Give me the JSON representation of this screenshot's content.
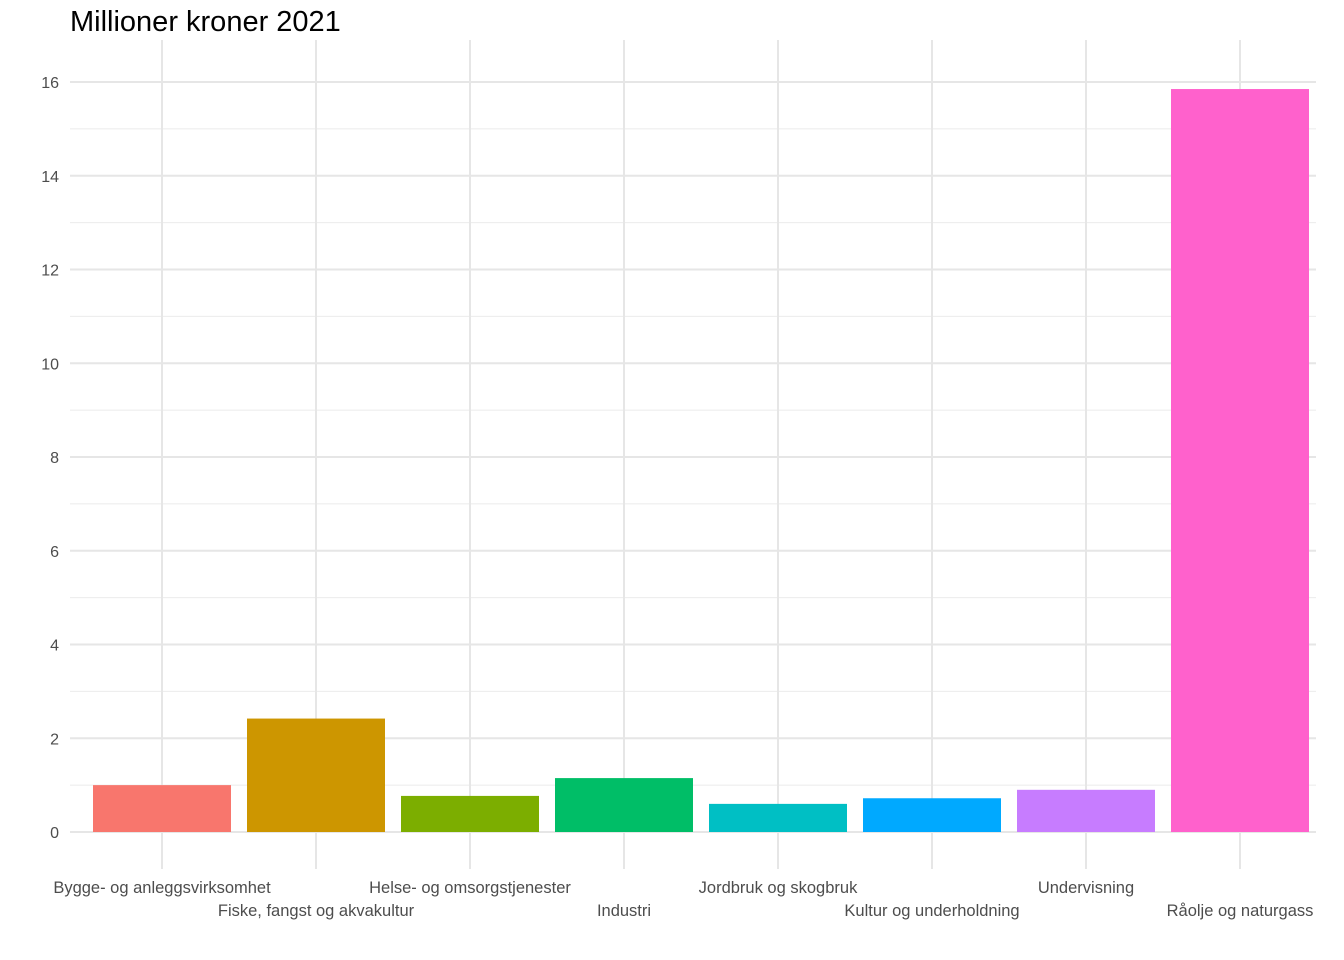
{
  "chart_data": {
    "type": "bar",
    "title": "Millioner kroner 2021",
    "xlabel": "",
    "ylabel": "",
    "ylim": [
      0,
      16.7
    ],
    "yticks": [
      0,
      2,
      4,
      6,
      8,
      10,
      12,
      14,
      16
    ],
    "grid": true,
    "legend": "none",
    "categories": [
      "Bygge- og anleggsvirksomhet",
      "Fiske, fangst og akvakultur",
      "Helse- og omsorgstjenester",
      "Industri",
      "Jordbruk og skogbruk",
      "Kultur og underholdning",
      "Undervisning",
      "Råolje og naturgass"
    ],
    "values": [
      1.0,
      2.42,
      0.77,
      1.15,
      0.6,
      0.72,
      0.9,
      15.85
    ],
    "colors": [
      "#F8766D",
      "#CD9600",
      "#7CAE00",
      "#00BE67",
      "#00BFC4",
      "#00A9FF",
      "#C77CFF",
      "#FF61CC"
    ]
  }
}
